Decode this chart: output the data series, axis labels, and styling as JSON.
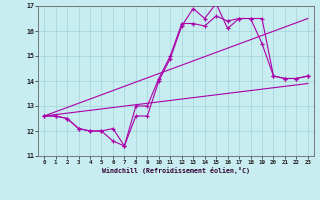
{
  "xlabel": "Windchill (Refroidissement éolien,°C)",
  "bg_color": "#c8edf0",
  "grid_color": "#a8d8dc",
  "line_color": "#aa00aa",
  "xlim": [
    -0.5,
    23.5
  ],
  "ylim": [
    11,
    17
  ],
  "yticks": [
    11,
    12,
    13,
    14,
    15,
    16,
    17
  ],
  "xticks": [
    0,
    1,
    2,
    3,
    4,
    5,
    6,
    7,
    8,
    9,
    10,
    11,
    12,
    13,
    14,
    15,
    16,
    17,
    18,
    19,
    20,
    21,
    22,
    23
  ],
  "line1_x": [
    0,
    1,
    2,
    3,
    4,
    5,
    6,
    7,
    8,
    9,
    10,
    11,
    12,
    13,
    14,
    15,
    16,
    17,
    18,
    19,
    20,
    21,
    22,
    23
  ],
  "line1_y": [
    12.6,
    12.6,
    12.5,
    12.1,
    12.0,
    12.0,
    11.6,
    11.4,
    12.6,
    12.6,
    14.0,
    14.9,
    16.2,
    16.9,
    16.5,
    17.1,
    16.1,
    16.5,
    16.5,
    15.5,
    14.2,
    14.1,
    14.1,
    14.2
  ],
  "line2_x": [
    0,
    1,
    2,
    3,
    4,
    5,
    6,
    7,
    8,
    9,
    10,
    11,
    12,
    13,
    14,
    15,
    16,
    17,
    18,
    19,
    20,
    21,
    22,
    23
  ],
  "line2_y": [
    12.6,
    12.6,
    12.5,
    12.1,
    12.0,
    12.0,
    12.1,
    11.4,
    13.0,
    13.0,
    14.1,
    15.0,
    16.3,
    16.3,
    16.2,
    16.6,
    16.4,
    16.5,
    16.5,
    16.5,
    14.2,
    14.1,
    14.1,
    14.2
  ],
  "trend1_x": [
    0,
    23
  ],
  "trend1_y": [
    12.6,
    13.9
  ],
  "trend2_x": [
    0,
    23
  ],
  "trend2_y": [
    12.6,
    16.5
  ]
}
